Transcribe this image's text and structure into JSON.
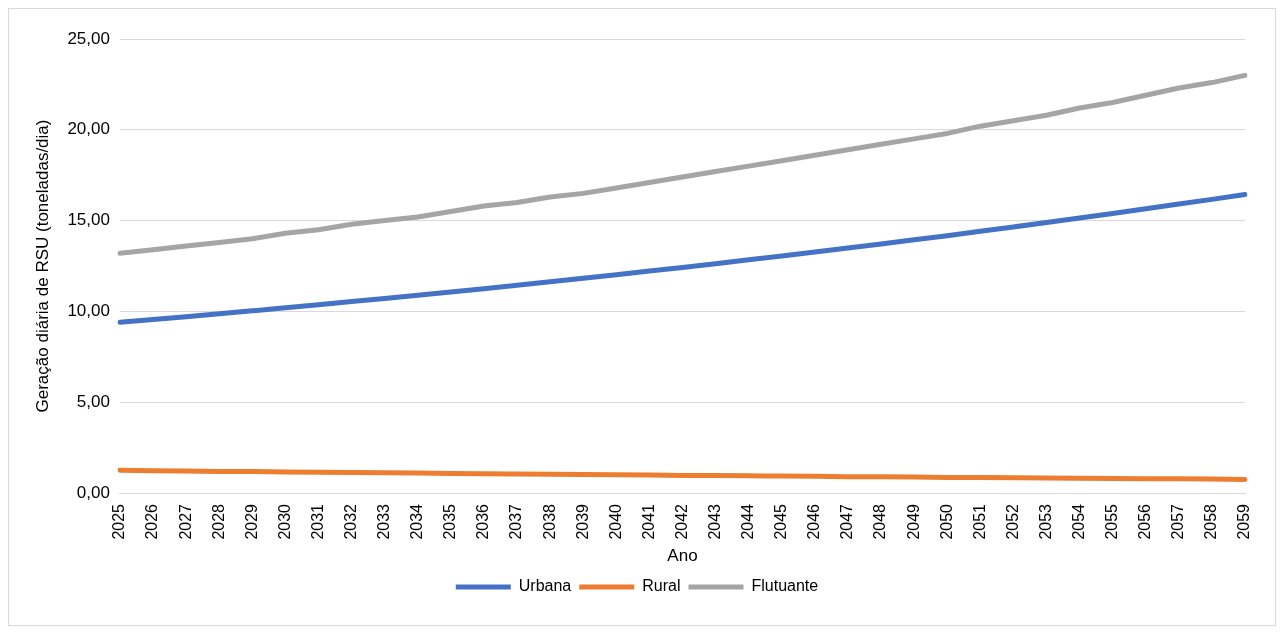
{
  "chart_data": {
    "type": "line",
    "xlabel": "Ano",
    "ylabel": "Geração diária de RSU (toneladas/dia)",
    "categories": [
      "2025",
      "2026",
      "2027",
      "2028",
      "2029",
      "2030",
      "2031",
      "2032",
      "2033",
      "2034",
      "2035",
      "2036",
      "2037",
      "2038",
      "2039",
      "2040",
      "2041",
      "2042",
      "2043",
      "2044",
      "2045",
      "2046",
      "2047",
      "2048",
      "2049",
      "2050",
      "2051",
      "2052",
      "2053",
      "2054",
      "2055",
      "2056",
      "2057",
      "2058",
      "2059"
    ],
    "series": [
      {
        "name": "Urbana",
        "color": "#4472c4",
        "values": [
          9.4,
          9.55,
          9.71,
          9.87,
          10.03,
          10.2,
          10.37,
          10.54,
          10.71,
          10.89,
          11.07,
          11.25,
          11.44,
          11.63,
          11.82,
          12.02,
          12.22,
          12.42,
          12.63,
          12.84,
          13.05,
          13.27,
          13.49,
          13.71,
          13.94,
          14.17,
          14.41,
          14.65,
          14.89,
          15.14,
          15.39,
          15.65,
          15.91,
          16.17,
          16.44
        ]
      },
      {
        "name": "Rural",
        "color": "#ed7d31",
        "values": [
          1.25,
          1.23,
          1.21,
          1.19,
          1.18,
          1.16,
          1.14,
          1.13,
          1.11,
          1.1,
          1.08,
          1.06,
          1.05,
          1.03,
          1.02,
          1.0,
          0.99,
          0.97,
          0.96,
          0.95,
          0.93,
          0.92,
          0.9,
          0.89,
          0.88,
          0.86,
          0.85,
          0.84,
          0.83,
          0.81,
          0.8,
          0.79,
          0.78,
          0.77,
          0.75
        ]
      },
      {
        "name": "Flutuante",
        "color": "#a5a5a5",
        "values": [
          13.2,
          13.4,
          13.6,
          13.8,
          14.0,
          14.3,
          14.5,
          14.8,
          15.0,
          15.2,
          15.5,
          15.8,
          16.0,
          16.3,
          16.5,
          16.8,
          17.1,
          17.4,
          17.7,
          18.0,
          18.3,
          18.6,
          18.9,
          19.2,
          19.5,
          19.8,
          20.2,
          20.5,
          20.8,
          21.2,
          21.5,
          21.9,
          22.3,
          22.6,
          23.0
        ]
      }
    ],
    "ylim": [
      0,
      25
    ],
    "yticks": [
      {
        "value": 0,
        "label": "0,00"
      },
      {
        "value": 5,
        "label": "5,00"
      },
      {
        "value": 10,
        "label": "10,00"
      },
      {
        "value": 15,
        "label": "15,00"
      },
      {
        "value": 20,
        "label": "20,00"
      },
      {
        "value": 25,
        "label": "25,00"
      }
    ],
    "grid": "y",
    "legend": "bottom",
    "marker": "none",
    "line_style": "solid"
  }
}
